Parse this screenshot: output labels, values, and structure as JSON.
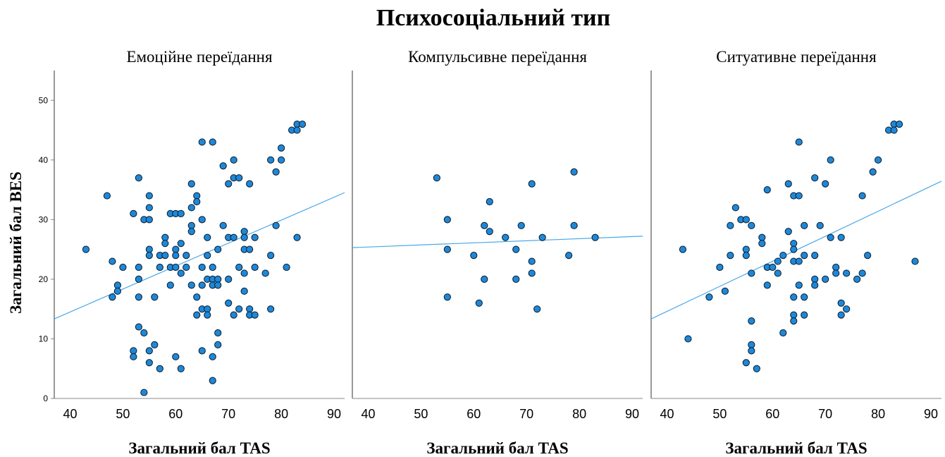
{
  "chart_data": {
    "type": "scatter",
    "title": "Психосоціальний тип",
    "xlabel": "Загальний бал TAS",
    "ylabel": "Загальний бал BES",
    "xlim": [
      37,
      92
    ],
    "ylim": [
      0,
      55
    ],
    "x_ticks": [
      40,
      50,
      60,
      70,
      80,
      90
    ],
    "y_ticks": [
      0,
      10,
      20,
      30,
      40,
      50
    ],
    "grid": false,
    "panels": [
      {
        "title": "Емоційне переїдання",
        "fit": {
          "slope": 0.385,
          "intercept": -0.9
        },
        "points": [
          [
            43,
            25
          ],
          [
            47,
            34
          ],
          [
            48,
            23
          ],
          [
            48,
            17
          ],
          [
            49,
            19
          ],
          [
            49,
            18
          ],
          [
            50,
            22
          ],
          [
            52,
            31
          ],
          [
            52,
            8
          ],
          [
            52,
            7
          ],
          [
            53,
            37
          ],
          [
            53,
            22
          ],
          [
            53,
            20
          ],
          [
            53,
            17
          ],
          [
            53,
            12
          ],
          [
            54,
            30
          ],
          [
            54,
            11
          ],
          [
            54,
            1
          ],
          [
            55,
            34
          ],
          [
            55,
            32
          ],
          [
            55,
            30
          ],
          [
            55,
            25
          ],
          [
            55,
            24
          ],
          [
            55,
            8
          ],
          [
            55,
            6
          ],
          [
            56,
            17
          ],
          [
            56,
            9
          ],
          [
            57,
            24
          ],
          [
            57,
            22
          ],
          [
            57,
            5
          ],
          [
            58,
            27
          ],
          [
            58,
            26
          ],
          [
            58,
            24
          ],
          [
            59,
            31
          ],
          [
            59,
            22
          ],
          [
            59,
            19
          ],
          [
            60,
            31
          ],
          [
            60,
            25
          ],
          [
            60,
            24
          ],
          [
            60,
            22
          ],
          [
            60,
            7
          ],
          [
            61,
            31
          ],
          [
            61,
            26
          ],
          [
            61,
            21
          ],
          [
            61,
            5
          ],
          [
            62,
            24
          ],
          [
            62,
            22
          ],
          [
            63,
            36
          ],
          [
            63,
            32
          ],
          [
            63,
            29
          ],
          [
            63,
            28
          ],
          [
            63,
            19
          ],
          [
            64,
            34
          ],
          [
            64,
            33
          ],
          [
            64,
            17
          ],
          [
            64,
            14
          ],
          [
            65,
            43
          ],
          [
            65,
            30
          ],
          [
            65,
            22
          ],
          [
            65,
            19
          ],
          [
            65,
            15
          ],
          [
            65,
            8
          ],
          [
            66,
            27
          ],
          [
            66,
            24
          ],
          [
            66,
            20
          ],
          [
            66,
            15
          ],
          [
            66,
            14
          ],
          [
            67,
            43
          ],
          [
            67,
            22
          ],
          [
            67,
            20
          ],
          [
            67,
            19
          ],
          [
            67,
            7
          ],
          [
            67,
            3
          ],
          [
            68,
            25
          ],
          [
            68,
            20
          ],
          [
            68,
            19
          ],
          [
            68,
            11
          ],
          [
            68,
            9
          ],
          [
            69,
            39
          ],
          [
            69,
            29
          ],
          [
            70,
            36
          ],
          [
            70,
            27
          ],
          [
            70,
            20
          ],
          [
            70,
            16
          ],
          [
            71,
            40
          ],
          [
            71,
            37
          ],
          [
            71,
            27
          ],
          [
            71,
            14
          ],
          [
            72,
            37
          ],
          [
            72,
            22
          ],
          [
            72,
            15
          ],
          [
            73,
            28
          ],
          [
            73,
            27
          ],
          [
            73,
            25
          ],
          [
            73,
            21
          ],
          [
            73,
            18
          ],
          [
            74,
            36
          ],
          [
            74,
            25
          ],
          [
            74,
            15
          ],
          [
            74,
            14
          ],
          [
            75,
            27
          ],
          [
            75,
            22
          ],
          [
            75,
            14
          ],
          [
            77,
            21
          ],
          [
            78,
            40
          ],
          [
            78,
            24
          ],
          [
            78,
            15
          ],
          [
            79,
            38
          ],
          [
            79,
            29
          ],
          [
            80,
            42
          ],
          [
            80,
            40
          ],
          [
            81,
            22
          ],
          [
            82,
            45
          ],
          [
            83,
            46
          ],
          [
            83,
            45
          ],
          [
            83,
            27
          ],
          [
            84,
            46
          ]
        ]
      },
      {
        "title": "Компульсивне переїдання",
        "fit": {
          "slope": 0.035,
          "intercept": 24.0
        },
        "points": [
          [
            53,
            37
          ],
          [
            55,
            30
          ],
          [
            55,
            25
          ],
          [
            55,
            17
          ],
          [
            60,
            24
          ],
          [
            61,
            16
          ],
          [
            62,
            29
          ],
          [
            62,
            20
          ],
          [
            63,
            33
          ],
          [
            63,
            28
          ],
          [
            66,
            27
          ],
          [
            68,
            25
          ],
          [
            68,
            20
          ],
          [
            69,
            29
          ],
          [
            71,
            36
          ],
          [
            71,
            23
          ],
          [
            71,
            21
          ],
          [
            72,
            15
          ],
          [
            73,
            27
          ],
          [
            78,
            24
          ],
          [
            79,
            38
          ],
          [
            79,
            29
          ],
          [
            83,
            27
          ]
        ]
      },
      {
        "title": "Ситуативне переїдання",
        "fit": {
          "slope": 0.42,
          "intercept": -2.2
        },
        "points": [
          [
            43,
            25
          ],
          [
            44,
            10
          ],
          [
            48,
            17
          ],
          [
            50,
            22
          ],
          [
            51,
            18
          ],
          [
            52,
            29
          ],
          [
            52,
            24
          ],
          [
            53,
            32
          ],
          [
            54,
            30
          ],
          [
            55,
            30
          ],
          [
            55,
            25
          ],
          [
            55,
            24
          ],
          [
            55,
            6
          ],
          [
            56,
            29
          ],
          [
            56,
            21
          ],
          [
            56,
            13
          ],
          [
            56,
            9
          ],
          [
            56,
            8
          ],
          [
            57,
            5
          ],
          [
            58,
            27
          ],
          [
            58,
            26
          ],
          [
            59,
            35
          ],
          [
            59,
            22
          ],
          [
            59,
            19
          ],
          [
            60,
            22
          ],
          [
            61,
            23
          ],
          [
            61,
            21
          ],
          [
            62,
            24
          ],
          [
            62,
            11
          ],
          [
            63,
            36
          ],
          [
            63,
            28
          ],
          [
            64,
            34
          ],
          [
            64,
            26
          ],
          [
            64,
            25
          ],
          [
            64,
            23
          ],
          [
            64,
            17
          ],
          [
            64,
            14
          ],
          [
            64,
            13
          ],
          [
            65,
            43
          ],
          [
            65,
            34
          ],
          [
            65,
            23
          ],
          [
            65,
            19
          ],
          [
            66,
            29
          ],
          [
            66,
            24
          ],
          [
            66,
            17
          ],
          [
            66,
            14
          ],
          [
            68,
            37
          ],
          [
            68,
            24
          ],
          [
            68,
            20
          ],
          [
            68,
            19
          ],
          [
            69,
            29
          ],
          [
            70,
            36
          ],
          [
            70,
            20
          ],
          [
            71,
            40
          ],
          [
            71,
            27
          ],
          [
            72,
            22
          ],
          [
            72,
            21
          ],
          [
            73,
            27
          ],
          [
            73,
            16
          ],
          [
            73,
            14
          ],
          [
            74,
            21
          ],
          [
            74,
            15
          ],
          [
            76,
            20
          ],
          [
            77,
            34
          ],
          [
            77,
            21
          ],
          [
            78,
            24
          ],
          [
            79,
            38
          ],
          [
            80,
            40
          ],
          [
            82,
            45
          ],
          [
            83,
            46
          ],
          [
            83,
            45
          ],
          [
            84,
            46
          ],
          [
            87,
            23
          ]
        ]
      }
    ]
  }
}
